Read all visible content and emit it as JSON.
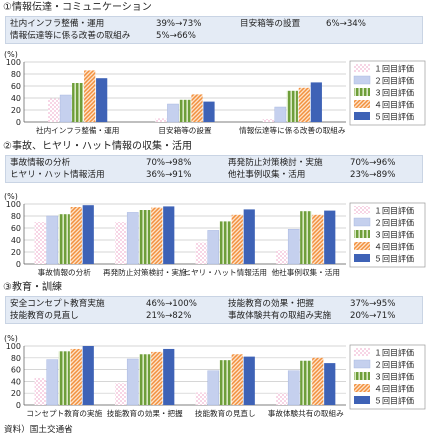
{
  "colors": {
    "r1": "#f2b8d3",
    "r2": "#c5d0ee",
    "r3": "#6e9e3a",
    "r4": "#f2903e",
    "r5": "#3e62b6",
    "panel": "#e4ebf5"
  },
  "legend": [
    "１回目評価",
    "２回目評価",
    "３回目評価",
    "４回目評価",
    "５回目評価"
  ],
  "sections": [
    {
      "title": "①情報伝達・コミュニケーション",
      "summary": [
        {
          "label": "社内インフラ整備・運用",
          "value": "39%→73%"
        },
        {
          "label": "目安箱等の設置",
          "value": "6%→34%"
        },
        {
          "label": "情報伝達等に係る改善の取組み",
          "value": "5%→66%"
        }
      ]
    },
    {
      "title": "②事故、ヒヤリ・ハット情報の収集・活用",
      "summary": [
        {
          "label": "事故情報の分析",
          "value": "70%→98%"
        },
        {
          "label": "再発防止対策検討・実施",
          "value": "70%→96%"
        },
        {
          "label": "ヒヤリ・ハット情報活用",
          "value": "36%→91%"
        },
        {
          "label": "他社事例収集・活用",
          "value": "23%→89%"
        }
      ]
    },
    {
      "title": "③教育・訓練",
      "summary": [
        {
          "label": "安全コンセプト教育実施",
          "value": "46%→100%"
        },
        {
          "label": "技能教育の効果・把握",
          "value": "37%→95%"
        },
        {
          "label": "技能教育の見直し",
          "value": "21%→82%"
        },
        {
          "label": "事故体験共有の取組み実施",
          "value": "20%→71%"
        }
      ]
    }
  ],
  "chart_data": [
    {
      "type": "bar",
      "ylabel": "(%)",
      "ylim": [
        0,
        100
      ],
      "yticks": [
        0,
        20,
        40,
        60,
        80,
        100
      ],
      "categories": [
        "社内インフラ整備・運用",
        "目安箱等の設置",
        "情報伝達等に係る改善の取組み"
      ],
      "series": [
        {
          "name": "１回目評価",
          "values": [
            39,
            6,
            5
          ]
        },
        {
          "name": "２回目評価",
          "values": [
            45,
            30,
            25
          ]
        },
        {
          "name": "３回目評価",
          "values": [
            65,
            37,
            52
          ]
        },
        {
          "name": "４回目評価",
          "values": [
            86,
            46,
            57
          ]
        },
        {
          "name": "５回目評価",
          "values": [
            73,
            34,
            66
          ]
        }
      ]
    },
    {
      "type": "bar",
      "ylabel": "(%)",
      "ylim": [
        0,
        100
      ],
      "yticks": [
        0,
        20,
        40,
        60,
        80,
        100
      ],
      "categories": [
        "事故情報の分析",
        "再発防止対策検討・実施",
        "ヒヤリ・ハット情報活用",
        "他社事例収集・活用"
      ],
      "series": [
        {
          "name": "１回目評価",
          "values": [
            70,
            70,
            36,
            23
          ]
        },
        {
          "name": "２回目評価",
          "values": [
            80,
            86,
            56,
            58
          ]
        },
        {
          "name": "３回目評価",
          "values": [
            83,
            90,
            71,
            88
          ]
        },
        {
          "name": "４回目評価",
          "values": [
            95,
            94,
            82,
            82
          ]
        },
        {
          "name": "５回目評価",
          "values": [
            98,
            96,
            91,
            89
          ]
        }
      ]
    },
    {
      "type": "bar",
      "ylabel": "(%)",
      "ylim": [
        0,
        100
      ],
      "yticks": [
        0,
        20,
        40,
        60,
        80,
        100
      ],
      "categories": [
        "コンセプト教育の実施",
        "技能教育の効果・把握",
        "技能教育の見直し",
        "事故体験共有の取組み"
      ],
      "series": [
        {
          "name": "１回目評価",
          "values": [
            46,
            37,
            21,
            20
          ]
        },
        {
          "name": "２回目評価",
          "values": [
            77,
            78,
            58,
            58
          ]
        },
        {
          "name": "３回目評価",
          "values": [
            91,
            86,
            76,
            75
          ]
        },
        {
          "name": "４回目評価",
          "values": [
            95,
            90,
            86,
            80
          ]
        },
        {
          "name": "５回目評価",
          "values": [
            100,
            95,
            82,
            71
          ]
        }
      ]
    }
  ],
  "source": "資料）国土交通省"
}
